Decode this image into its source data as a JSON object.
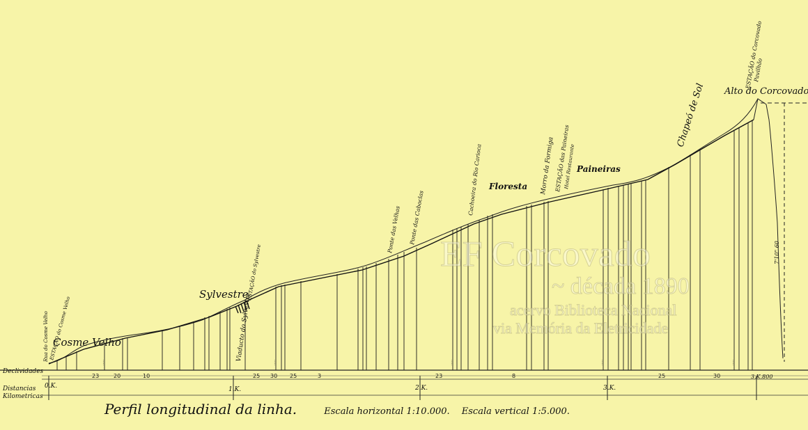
{
  "labels": {
    "cosme_velho": "Cosme Velho",
    "sylvestre": "Sylvestre",
    "floresta": "Floresta",
    "paineiras": "Paineiras",
    "chapeu_de_sol": "Chapeó de Sol",
    "alto_corcovado": "Alto do Corcovado",
    "rua_cosme_velho": "Rua do Cosme Velho",
    "estacao_cosme_velho": "ESTAÇÃO do Cosme Velho",
    "estacao_sylvestre": "ESTAÇÃO do Sylvestre",
    "viaducto": "Viaducto do Sylvestre",
    "ponte_velhas": "Ponte das Velhas",
    "ponte_caboclas": "Ponte das Caboclas",
    "cachoeira": "Cachoeira do Rio Carioca",
    "morro_formiga": "Morro da Formiga",
    "estacao_paineiras": "ESTAÇÃO das Paineiras",
    "hotel_restaurante": "Hotel Restaurante",
    "estacao_corcovado": "ESTAÇÃO do Corcovado",
    "pavilhao": "Pavilhão",
    "height_label": "7'10\" 60"
  },
  "rows": {
    "declividades": "Declividades",
    "distancias": "Distancias",
    "kilometricas": "Kilometricas"
  },
  "km_marks": [
    "0.K.",
    "1.K.",
    "2.K.",
    "3.K.",
    "3.K.800"
  ],
  "gradients": [
    "23",
    "20",
    "10",
    "25",
    "30",
    "25",
    "3",
    "23",
    "8",
    "25",
    "30"
  ],
  "caption": {
    "title": "Perfil longitudinal da linha.",
    "h_scale": "Escala horizontal   1:10.000.",
    "v_scale": "Escala vertical   1:5.000."
  },
  "watermark": {
    "line1": "EF Corcovado",
    "line2": "~ década 1890",
    "line3": "acervo Biblioteca Nacional",
    "line4": "via Memória da Eletricidade"
  },
  "colors": {
    "paper": "#f7f4a8",
    "ink": "#1a1a1a"
  }
}
